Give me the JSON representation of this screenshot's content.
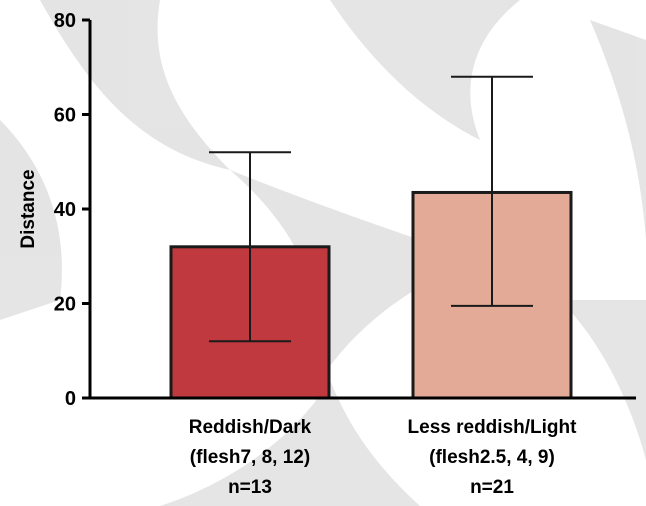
{
  "chart_data": {
    "type": "bar",
    "title": "",
    "xlabel": "",
    "ylabel": "Distance",
    "ylim": [
      0,
      80
    ],
    "yticks": [
      0,
      20,
      40,
      60,
      80
    ],
    "categories": [
      {
        "lines": [
          "Reddish/Dark",
          "(flesh7, 8, 12)",
          "n=13"
        ]
      },
      {
        "lines": [
          "Less reddish/Light",
          "(flesh2.5, 4, 9)",
          "n=21"
        ]
      }
    ],
    "values": [
      32,
      43.5
    ],
    "error_lower": [
      12,
      19.5
    ],
    "error_upper": [
      52,
      68
    ],
    "colors": [
      "#c0393f",
      "#e3aa97"
    ],
    "edge_color": "#1a1a1a",
    "grid": false,
    "legend": "none"
  }
}
